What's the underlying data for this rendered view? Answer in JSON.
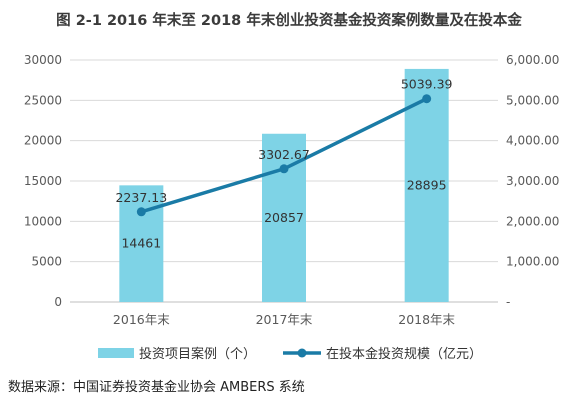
{
  "figure": {
    "title": "图 2-1 2016 年末至 2018 年末创业投资基金投资案例数量及在投本金",
    "source": "数据来源：中国证券投资基金业协会 AMBERS 系统"
  },
  "colors": {
    "bar": "#7ed3e6",
    "line": "#1a7ba6",
    "axis_text": "#595959",
    "grid": "#d9d9d9"
  },
  "chart_data": {
    "type": "bar+line",
    "categories": [
      "2016年末",
      "2017年末",
      "2018年末"
    ],
    "series": [
      {
        "name": "投资项目案例（个）",
        "kind": "bar",
        "axis": "left",
        "values": [
          14461,
          20857,
          28895
        ],
        "labels": [
          "14461",
          "20857",
          "28895"
        ]
      },
      {
        "name": "在投本金投资规模（亿元）",
        "kind": "line",
        "axis": "right",
        "values": [
          2237.13,
          3302.67,
          5039.39
        ],
        "labels": [
          "2237.13",
          "3302.67",
          "5039.39"
        ]
      }
    ],
    "y_left": {
      "min": 0,
      "max": 30000,
      "ticks": [
        "0",
        "5000",
        "10000",
        "15000",
        "20000",
        "25000",
        "30000"
      ]
    },
    "y_right": {
      "min": 0,
      "max": 6000,
      "ticks": [
        "-",
        "1,000.00",
        "2,000.00",
        "3,000.00",
        "4,000.00",
        "5,000.00",
        "6,000.00"
      ]
    },
    "grid": true,
    "legend_position": "bottom"
  }
}
